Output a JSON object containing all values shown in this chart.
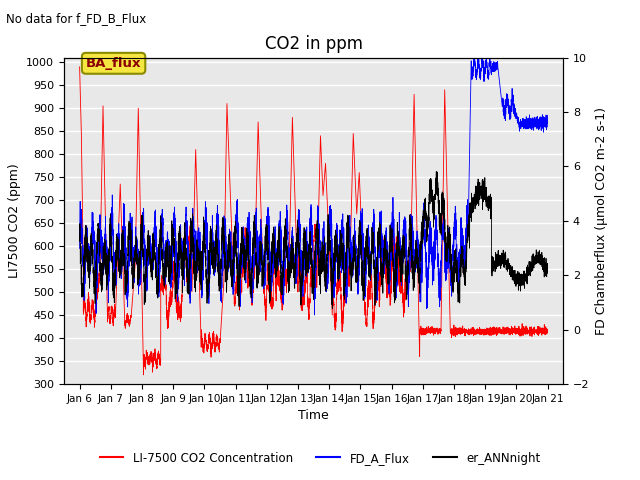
{
  "title": "CO2 in ppm",
  "top_left_text": "No data for f_FD_B_Flux",
  "ba_flux_label": "BA_flux",
  "xlabel": "Time",
  "ylabel_left": "LI7500 CO2 (ppm)",
  "ylabel_right": "FD Chamberflux (μmol CO2 m-2 s-1)",
  "ylim_left": [
    300,
    1010
  ],
  "ylim_right": [
    -2,
    10
  ],
  "yticks_left": [
    300,
    350,
    400,
    450,
    500,
    550,
    600,
    650,
    700,
    750,
    800,
    850,
    900,
    950,
    1000
  ],
  "yticks_right": [
    -2,
    0,
    2,
    4,
    6,
    8,
    10
  ],
  "xlim_days": [
    5.5,
    21.5
  ],
  "xtick_labels": [
    "Jan 6",
    "Jan 7",
    "Jan 8",
    "Jan 9",
    "Jan 10",
    "Jan 11",
    "Jan 12",
    "Jan 13",
    "Jan 14",
    "Jan 15",
    "Jan 16",
    "Jan 17",
    "Jan 18",
    "Jan 19",
    "Jan 20",
    "Jan 21"
  ],
  "xtick_positions": [
    6,
    7,
    8,
    9,
    10,
    11,
    12,
    13,
    14,
    15,
    16,
    17,
    18,
    19,
    20,
    21
  ],
  "line_colors": {
    "red": "#ff0000",
    "blue": "#0000ff",
    "black": "#000000"
  },
  "legend_labels": [
    "LI-7500 CO2 Concentration",
    "FD_A_Flux",
    "er_ANNnight"
  ],
  "background_color": "#e8e8e8",
  "grid_color": "#ffffff",
  "font_size": 9,
  "title_fontsize": 12
}
